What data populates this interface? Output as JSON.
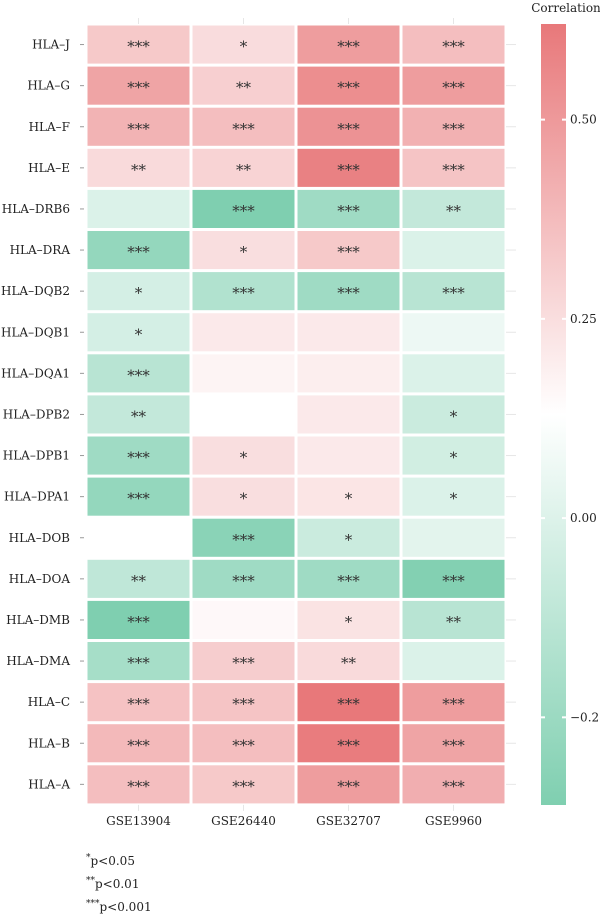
{
  "chart_data": {
    "type": "heatmap",
    "title": "",
    "columns": [
      "GSE13904",
      "GSE26440",
      "GSE32707",
      "GSE9960"
    ],
    "rows": [
      "HLA–J",
      "HLA–G",
      "HLA–F",
      "HLA–E",
      "HLA–DRB6",
      "HLA–DRA",
      "HLA–DQB2",
      "HLA–DQB1",
      "HLA–DQA1",
      "HLA–DPB2",
      "HLA–DPB1",
      "HLA–DPA1",
      "HLA–DOB",
      "HLA–DOA",
      "HLA–DMB",
      "HLA–DMA",
      "HLA–C",
      "HLA–B",
      "HLA–A"
    ],
    "values": [
      [
        0.25,
        0.16,
        0.45,
        0.3
      ],
      [
        0.42,
        0.22,
        0.52,
        0.45
      ],
      [
        0.35,
        0.3,
        0.5,
        0.36
      ],
      [
        0.17,
        0.2,
        0.58,
        0.27
      ],
      [
        -0.1,
        -0.4,
        -0.27,
        -0.17
      ],
      [
        -0.3,
        0.15,
        0.25,
        -0.1
      ],
      [
        -0.12,
        -0.22,
        -0.27,
        -0.2
      ],
      [
        -0.12,
        0.1,
        0.1,
        -0.05
      ],
      [
        -0.2,
        0.05,
        0.08,
        -0.1
      ],
      [
        -0.17,
        0.0,
        0.1,
        -0.15
      ],
      [
        -0.27,
        0.15,
        0.1,
        -0.13
      ],
      [
        -0.3,
        0.15,
        0.12,
        -0.1
      ],
      [
        0.0,
        -0.33,
        -0.15,
        -0.08
      ],
      [
        -0.18,
        -0.27,
        -0.27,
        -0.35
      ],
      [
        -0.4,
        0.03,
        0.13,
        -0.2
      ],
      [
        -0.25,
        0.23,
        0.17,
        -0.1
      ],
      [
        0.28,
        0.27,
        0.65,
        0.45
      ],
      [
        0.32,
        0.3,
        0.6,
        0.42
      ],
      [
        0.3,
        0.25,
        0.45,
        0.37
      ]
    ],
    "significance": [
      [
        "***",
        "*",
        "***",
        "***"
      ],
      [
        "***",
        "**",
        "***",
        "***"
      ],
      [
        "***",
        "***",
        "***",
        "***"
      ],
      [
        "**",
        "**",
        "***",
        "***"
      ],
      [
        "",
        "***",
        "***",
        "**"
      ],
      [
        "***",
        "*",
        "***",
        ""
      ],
      [
        "*",
        "***",
        "***",
        "***"
      ],
      [
        "*",
        "",
        "",
        ""
      ],
      [
        "***",
        "",
        "",
        ""
      ],
      [
        "**",
        "",
        "",
        "*"
      ],
      [
        "***",
        "*",
        "",
        "*"
      ],
      [
        "***",
        "*",
        "*",
        "*"
      ],
      [
        "",
        "***",
        "*",
        ""
      ],
      [
        "**",
        "***",
        "***",
        "***"
      ],
      [
        "***",
        "",
        "*",
        "**"
      ],
      [
        "***",
        "***",
        "**",
        ""
      ],
      [
        "***",
        "***",
        "***",
        "***"
      ],
      [
        "***",
        "***",
        "***",
        "***"
      ],
      [
        "***",
        "***",
        "***",
        "***"
      ]
    ],
    "legend": {
      "title": "Correlation",
      "range": [
        -0.36,
        0.62
      ],
      "ticks": [
        0.5,
        0.25,
        0.0,
        -0.25
      ],
      "tick_labels": [
        "0.50",
        "0.25",
        "0.00",
        "−0.25"
      ],
      "position": "right",
      "color_low": "#7fcfb0",
      "color_mid": "#ffffff",
      "color_high": "#e8787a"
    }
  },
  "notes": {
    "one_star": {
      "mark": "*",
      "text": "p<0.05"
    },
    "two_star": {
      "mark": "**",
      "text": "p<0.01"
    },
    "three_star": {
      "mark": "***",
      "text": "p<0.001"
    }
  }
}
